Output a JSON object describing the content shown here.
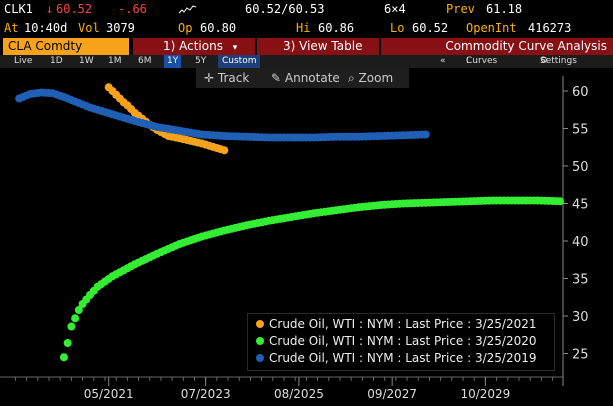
{
  "quote": {
    "ticker": "CLK1",
    "last": "60.52",
    "change": "-.66",
    "bid_ask": "60.52/60.53",
    "size": "6×4",
    "prev_label": "Prev",
    "prev_value": "61.18",
    "at_label": "At",
    "time": "10:40d",
    "vol_label": "Vol",
    "vol_value": "3079",
    "op_label": "Op",
    "op_value": "60.80",
    "hi_label": "Hi",
    "hi_value": "60.86",
    "lo_label": "Lo",
    "lo_value": "60.52",
    "oi_label": "OpenInt",
    "oi_value": "416273"
  },
  "menubar": {
    "security": "CLA Comdty",
    "actions": "1) Actions",
    "actions_arrow": "▾",
    "view_table": "3) View Table",
    "title": "Commodity Curve Analysis"
  },
  "periods": {
    "items": [
      "Live",
      "1D",
      "1W",
      "1M",
      "6M",
      "1Y",
      "5Y"
    ],
    "selected": "1Y",
    "custom": "Custom",
    "collapse": "«",
    "curves": "Curves",
    "settings": "Settings"
  },
  "chart_tools": {
    "track": "Track",
    "annotate": "Annotate",
    "zoom": "Zoom"
  },
  "legend": [
    {
      "label": "Crude Oil, WTI : NYM : Last Price : 3/25/2021",
      "color": "#f7a21b"
    },
    {
      "label": "Crude Oil, WTI : NYM : Last Price : 3/25/2020",
      "color": "#33ee33"
    },
    {
      "label": "Crude Oil, WTI : NYM : Last Price : 3/25/2019",
      "color": "#1f5fb5"
    }
  ],
  "chart_data": {
    "type": "scatter",
    "x_ticks": [
      "05/2021",
      "07/2023",
      "08/2025",
      "09/2027",
      "10/2029"
    ],
    "y_ticks": [
      25,
      30,
      35,
      40,
      45,
      50,
      55,
      60
    ],
    "ylim": [
      22,
      62
    ],
    "series": [
      {
        "name": "Crude Oil, WTI : NYM : Last Price : 3/25/2021",
        "color": "#f7a21b",
        "x": [
          "2021-05",
          "2021-06",
          "2021-07",
          "2021-08",
          "2021-09",
          "2021-10",
          "2021-11",
          "2021-12",
          "2022-01",
          "2022-02",
          "2022-03",
          "2022-04",
          "2022-06",
          "2022-09",
          "2022-12",
          "2023-06",
          "2023-12"
        ],
        "y": [
          60.5,
          60.0,
          59.5,
          59.0,
          58.5,
          58.1,
          57.6,
          57.1,
          56.7,
          56.3,
          55.9,
          55.5,
          54.8,
          54.0,
          53.7,
          53.0,
          52.1
        ]
      },
      {
        "name": "Crude Oil, WTI : NYM : Last Price : 3/25/2020",
        "color": "#33ee33",
        "x": [
          "2020-05",
          "2020-06",
          "2020-07",
          "2020-08",
          "2020-09",
          "2020-10",
          "2020-12",
          "2021-02",
          "2021-06",
          "2021-12",
          "2022-06",
          "2022-12",
          "2023-06",
          "2023-12",
          "2024-06",
          "2024-12",
          "2025-06",
          "2025-12",
          "2026-06",
          "2026-12",
          "2027-06",
          "2027-12",
          "2028-06",
          "2028-12",
          "2029-06",
          "2029-12",
          "2030-06",
          "2030-12",
          "2031-06"
        ],
        "y": [
          24.5,
          26.4,
          28.6,
          29.7,
          30.8,
          31.6,
          32.8,
          33.9,
          35.3,
          36.9,
          38.3,
          39.6,
          40.6,
          41.4,
          42.1,
          42.7,
          43.2,
          43.7,
          44.1,
          44.5,
          44.8,
          45.0,
          45.1,
          45.2,
          45.3,
          45.4,
          45.4,
          45.4,
          45.3
        ]
      },
      {
        "name": "Crude Oil, WTI : NYM : Last Price : 3/25/2019",
        "color": "#1f5fb5",
        "x": [
          "2019-05",
          "2019-08",
          "2019-11",
          "2020-02",
          "2020-05",
          "2020-08",
          "2020-12",
          "2021-06",
          "2021-12",
          "2022-06",
          "2022-12",
          "2023-06",
          "2023-12",
          "2024-06",
          "2024-12",
          "2025-06",
          "2025-12",
          "2026-06",
          "2026-12",
          "2027-06",
          "2027-12",
          "2028-06"
        ],
        "y": [
          59.0,
          59.6,
          59.8,
          59.7,
          59.2,
          58.6,
          57.8,
          56.9,
          56.0,
          55.2,
          54.7,
          54.2,
          54.0,
          53.9,
          53.8,
          53.8,
          53.8,
          53.9,
          53.9,
          54.0,
          54.1,
          54.2
        ]
      }
    ]
  }
}
